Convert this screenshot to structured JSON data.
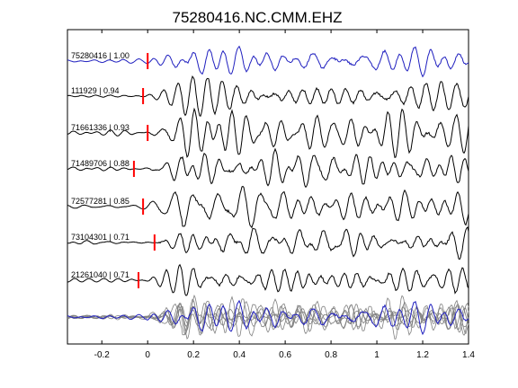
{
  "chart_data": {
    "type": "line",
    "title": "75280416.NC.CMM.EHZ",
    "xlabel": "",
    "ylabel": "",
    "xlim": [
      -0.35,
      1.4
    ],
    "xticks": [
      -0.2,
      0,
      0.2,
      0.4,
      0.6,
      0.8,
      1,
      1.2,
      1.4
    ],
    "xtick_labels": [
      "-0.2",
      "0",
      "0.2",
      "0.4",
      "0.6",
      "0.8",
      "1",
      "1.2",
      "1.4"
    ],
    "grid": false,
    "colors": {
      "reference": "#1f1fbf",
      "trace": "#000000",
      "pick": "#ff0000",
      "stack": "#808080"
    },
    "series": [
      {
        "label": "75280416 | 1.00",
        "pick": 0.0,
        "color": "#1f1fbf"
      },
      {
        "label": "111929 | 0.94",
        "pick": -0.02,
        "color": "#000000"
      },
      {
        "label": "71661336 | 0.93",
        "pick": 0.0,
        "color": "#000000"
      },
      {
        "label": "71489706 | 0.88",
        "pick": -0.06,
        "color": "#000000"
      },
      {
        "label": "72577281 | 0.85",
        "pick": -0.02,
        "color": "#000000"
      },
      {
        "label": "73104301 | 0.71",
        "pick": 0.03,
        "color": "#000000"
      },
      {
        "label": "21261040 | 0.71",
        "pick": -0.04,
        "color": "#000000"
      }
    ]
  }
}
